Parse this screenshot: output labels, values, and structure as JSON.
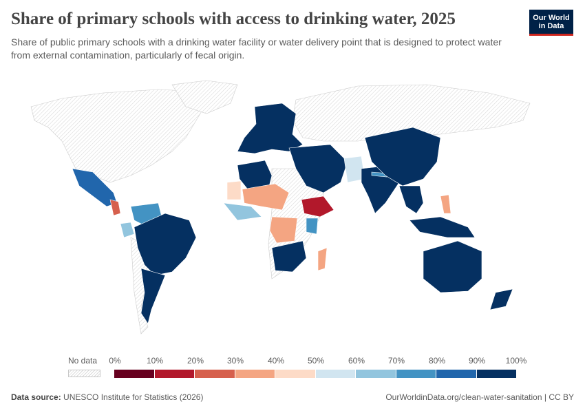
{
  "header": {
    "title": "Share of primary schools with access to drinking water, 2025",
    "subtitle": "Share of public primary schools with a drinking water facility or water delivery point that is designed to protect water from external contamination, particularly of fecal origin."
  },
  "logo": {
    "line1": "Our World",
    "line2": "in Data"
  },
  "legend": {
    "no_data_label": "No data",
    "ticks": [
      "0%",
      "10%",
      "20%",
      "30%",
      "40%",
      "50%",
      "60%",
      "70%",
      "80%",
      "90%",
      "100%"
    ],
    "bin_colors": [
      "#67001f",
      "#b2182b",
      "#d6604d",
      "#f4a582",
      "#fddbc7",
      "#d1e5f0",
      "#92c5de",
      "#4393c3",
      "#2166ac",
      "#053061"
    ],
    "no_data_color": "#ececec"
  },
  "footer": {
    "source_label": "Data source:",
    "source_text": "UNESCO Institute for Statistics (2026)",
    "link_text": "OurWorldinData.org/clean-water-sanitation | CC BY"
  },
  "chart_data": {
    "type": "choropleth",
    "year": 2025,
    "unit": "%",
    "scale": {
      "min": 0,
      "max": 100,
      "bin_size": 10
    },
    "regions": [
      {
        "name": "North America (Canada/USA)",
        "bin": "no data"
      },
      {
        "name": "Mexico",
        "bin": "80-90%"
      },
      {
        "name": "Guatemala / Honduras area",
        "bin": "20-30%"
      },
      {
        "name": "Colombia / Venezuela",
        "bin": "70-80%"
      },
      {
        "name": "Ecuador / Peru",
        "bin": "60-70%"
      },
      {
        "name": "Brazil / South America east",
        "bin": "90-100%"
      },
      {
        "name": "Chile / Argentina",
        "bin": "90-100%"
      },
      {
        "name": "Europe",
        "bin": "90-100%"
      },
      {
        "name": "Morocco / Algeria",
        "bin": "90-100%"
      },
      {
        "name": "Mauritania",
        "bin": "40-50%"
      },
      {
        "name": "Mali / Niger",
        "bin": "30-40%"
      },
      {
        "name": "West Africa coast",
        "bin": "60-70%"
      },
      {
        "name": "Ethiopia",
        "bin": "10-20%"
      },
      {
        "name": "Kenya",
        "bin": "70-80%"
      },
      {
        "name": "DR Congo",
        "bin": "30-40%"
      },
      {
        "name": "Southern Africa",
        "bin": "90-100%"
      },
      {
        "name": "Madagascar",
        "bin": "30-40%"
      },
      {
        "name": "Middle East",
        "bin": "90-100%"
      },
      {
        "name": "Pakistan",
        "bin": "50-60%"
      },
      {
        "name": "India",
        "bin": "90-100%"
      },
      {
        "name": "Nepal",
        "bin": "70-80%"
      },
      {
        "name": "China",
        "bin": "90-100%"
      },
      {
        "name": "Southeast Asia",
        "bin": "90-100%"
      },
      {
        "name": "Philippines",
        "bin": "40-50%"
      },
      {
        "name": "Australia / New Zealand",
        "bin": "90-100%"
      },
      {
        "name": "Russia / Greenland",
        "bin": "no data"
      }
    ]
  }
}
